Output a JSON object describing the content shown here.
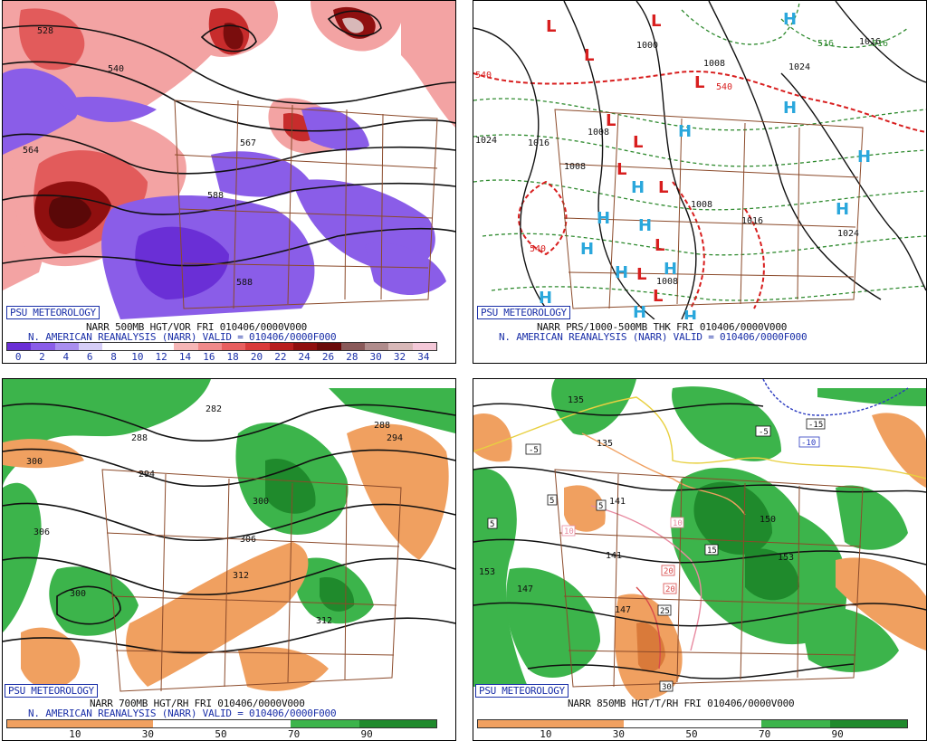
{
  "badge": "PSU METEOROLOGY",
  "panels": {
    "tl": {
      "title_line": "NARR 500MB HGT/VOR FRI 010406/0000V000",
      "subtitle_line": "N. AMERICAN REANALYSIS (NARR) VALID = 010406/0000F000",
      "contour_labels": [
        "528",
        "540",
        "564",
        "567",
        "588",
        "588"
      ],
      "colorbar_labels": [
        "0",
        "2",
        "4",
        "6",
        "8",
        "10",
        "12",
        "14",
        "16",
        "18",
        "20",
        "22",
        "24",
        "26",
        "28",
        "30",
        "32",
        "34"
      ],
      "colorbar_colors": [
        "#6a2fd6",
        "#8a5de8",
        "#a98ef0",
        "#d6cef8",
        "#ffffff",
        "#ffffff",
        "#ffffff",
        "#f6b6b6",
        "#f08a8a",
        "#e85f5f",
        "#d93a3a",
        "#b71e1e",
        "#8f0f0f",
        "#6a0a0a",
        "#8a5a5a",
        "#b08c8c",
        "#d8b8b8",
        "#f4c8d8"
      ]
    },
    "tr": {
      "title_line": "NARR PRS/1000-500MB THK FRI 010406/0000V000",
      "subtitle_line": "N. AMERICAN REANALYSIS (NARR) VALID = 010406/0000F000",
      "isobar_labels": [
        "1000",
        "1008",
        "1024",
        "1016",
        "1008",
        "1008",
        "1008",
        "1016",
        "1024",
        "1008",
        "1016",
        "1024"
      ],
      "thickness_labels": [
        "540",
        "540",
        "540",
        "516",
        "516"
      ],
      "low_symbol": "L",
      "high_symbol": "H"
    },
    "bl": {
      "title_line": "NARR 700MB HGT/RH FRI 010406/0000V000",
      "subtitle_line": "N. AMERICAN REANALYSIS (NARR) VALID = 010406/0000F000",
      "contour_labels": [
        "282",
        "288",
        "288",
        "294",
        "294",
        "300",
        "300",
        "306",
        "306",
        "312",
        "312",
        "300"
      ],
      "colorbar_labels": [
        "10",
        "30",
        "50",
        "70",
        "90"
      ]
    },
    "br": {
      "title_line": "NARR 850MB HGT/T/RH FRI 010406/0000V000",
      "contour_labels": [
        "135",
        "135",
        "141",
        "141",
        "147",
        "147",
        "153",
        "153",
        "150"
      ],
      "temp_labels": [
        "-5",
        "-5",
        "5",
        "5",
        "5",
        "10",
        "10",
        "15",
        "20",
        "20",
        "25",
        "30",
        "-15",
        "-10"
      ],
      "colorbar_labels": [
        "10",
        "30",
        "50",
        "70",
        "90"
      ]
    }
  },
  "colors": {
    "rh_dry": "#f0a060",
    "rh_moist": "#3cb44b",
    "rh_moist_dark": "#1f8a2c",
    "state_lines": "#8b4a2a",
    "contour": "#111111",
    "accent_blue": "#1a2fa8"
  }
}
